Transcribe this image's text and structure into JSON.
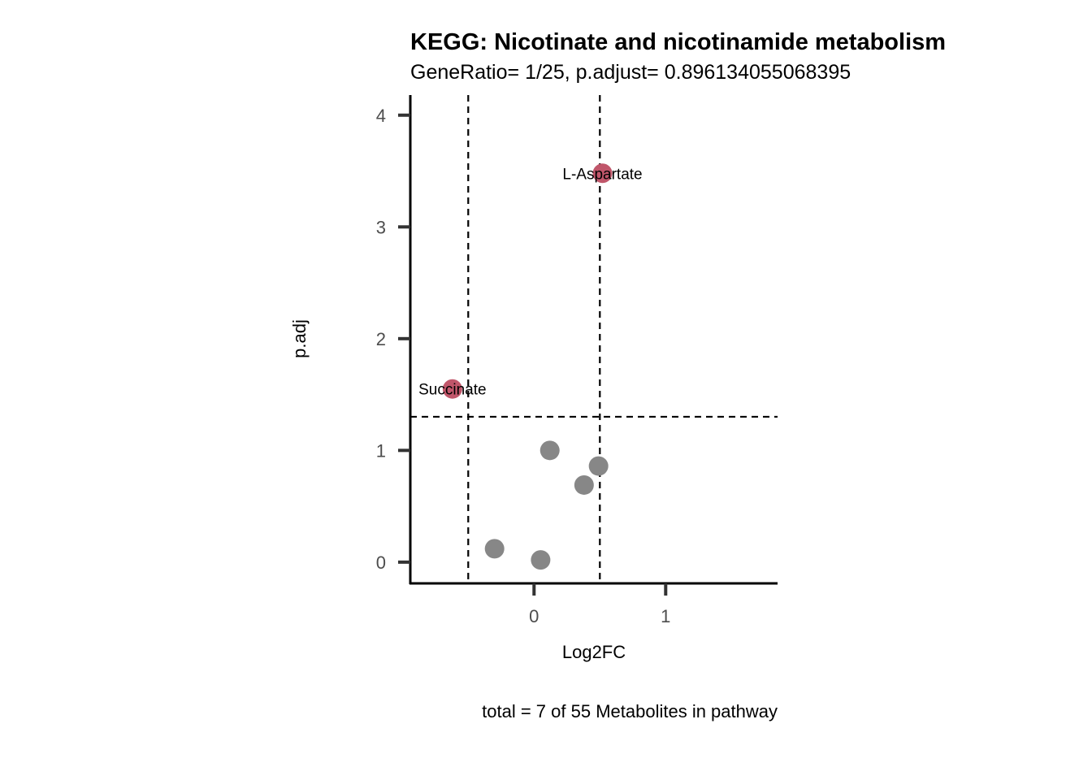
{
  "chart_data": {
    "type": "scatter",
    "title": "KEGG: Nicotinate and nicotinamide metabolism",
    "subtitle": "GeneRatio= 1/25, p.adjust= 0.896134055068395",
    "xlabel": "Log2FC",
    "ylabel": "p.adj",
    "caption": "total = 7 of 55 Metabolites in pathway",
    "xlim": [
      -0.94,
      1.85
    ],
    "ylim": [
      -0.19,
      4.18
    ],
    "xticks": [
      0,
      1
    ],
    "xtick_labels": [
      "0",
      "1"
    ],
    "yticks": [
      0,
      1,
      2,
      3,
      4
    ],
    "ytick_labels": [
      "0",
      "1",
      "2",
      "3",
      "4"
    ],
    "grid": false,
    "thresholds": {
      "vlines": [
        -0.5,
        0.5
      ],
      "hline": 1.301
    },
    "colors": {
      "significant": "#C0566A",
      "not_significant": "#878787",
      "axis": "#000000",
      "ticks": "#333333"
    },
    "points": [
      {
        "x": 0.52,
        "y": 3.48,
        "label": "L-Aspartate",
        "significant": true
      },
      {
        "x": -0.62,
        "y": 1.55,
        "label": "Succinate",
        "significant": true
      },
      {
        "x": 0.12,
        "y": 1.0,
        "label": "",
        "significant": false
      },
      {
        "x": 0.49,
        "y": 0.86,
        "label": "",
        "significant": false
      },
      {
        "x": 0.38,
        "y": 0.69,
        "label": "",
        "significant": false
      },
      {
        "x": -0.3,
        "y": 0.12,
        "label": "",
        "significant": false
      },
      {
        "x": 0.05,
        "y": 0.02,
        "label": "",
        "significant": false
      }
    ]
  }
}
